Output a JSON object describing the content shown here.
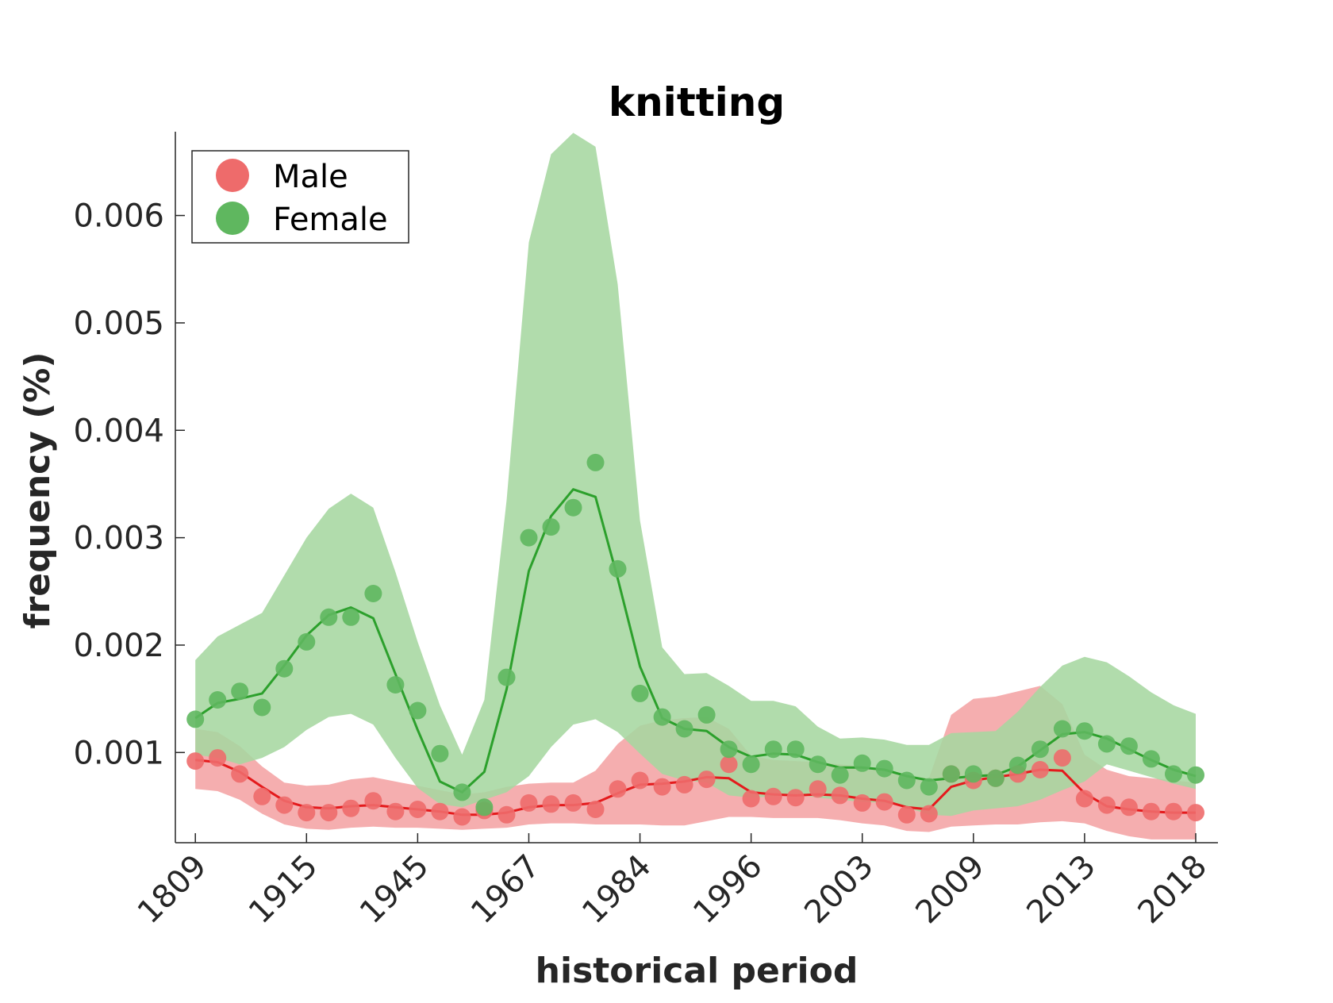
{
  "chart_data": {
    "type": "line",
    "title": "knitting",
    "xlabel": "historical period",
    "ylabel": "frequency (%)",
    "x_tick_labels": [
      "1809",
      "1915",
      "1945",
      "1967",
      "1984",
      "1996",
      "2003",
      "2009",
      "2013",
      "2018"
    ],
    "x_tick_positions": [
      1,
      6,
      11,
      16,
      21,
      26,
      31,
      36,
      41,
      46
    ],
    "xlim": [
      0.1,
      47
    ],
    "ylim": [
      0.00016,
      0.00678
    ],
    "y_ticks": [
      0.001,
      0.002,
      0.003,
      0.004,
      0.005,
      0.006
    ],
    "y_tick_labels": [
      "0.001",
      "0.002",
      "0.003",
      "0.004",
      "0.005",
      "0.006"
    ],
    "grid": false,
    "legend_position": "top-left",
    "x": [
      1,
      2,
      3,
      4,
      5,
      6,
      7,
      8,
      9,
      10,
      11,
      12,
      13,
      14,
      15,
      16,
      17,
      18,
      19,
      20,
      21,
      22,
      23,
      24,
      25,
      26,
      27,
      28,
      29,
      30,
      31,
      32,
      33,
      34,
      35,
      36,
      37,
      38,
      39,
      40,
      41,
      42,
      43,
      44,
      45,
      46
    ],
    "series": [
      {
        "name": "Male",
        "color": "#e41a1c",
        "point_color": "#ee6b6b",
        "band_color": "#f4a3a4",
        "points": [
          0.00092,
          0.00095,
          0.0008,
          0.00059,
          0.00051,
          0.00044,
          0.00044,
          0.00048,
          0.00055,
          0.00045,
          0.00047,
          0.00045,
          0.0004,
          0.00046,
          0.00042,
          0.00053,
          0.00052,
          0.00053,
          0.00047,
          0.00066,
          0.00074,
          0.00068,
          0.0007,
          0.00075,
          0.00089,
          0.00057,
          0.00059,
          0.00058,
          0.00066,
          0.0006,
          0.00053,
          0.00054,
          0.00042,
          0.00043,
          0.0008,
          0.00074,
          0.00076,
          0.0008,
          0.00084,
          0.00095,
          0.00057,
          0.00051,
          0.00049,
          0.00045,
          0.00045,
          0.00044
        ],
        "trend": [
          0.00093,
          0.00091,
          0.00082,
          0.00068,
          0.00055,
          0.00049,
          0.00048,
          0.0005,
          0.00051,
          0.00049,
          0.00047,
          0.00045,
          0.00042,
          0.00042,
          0.00044,
          0.00049,
          0.00051,
          0.00051,
          0.00053,
          0.00062,
          0.0007,
          0.00071,
          0.00073,
          0.00077,
          0.00076,
          0.00063,
          0.00061,
          0.0006,
          0.00061,
          0.0006,
          0.00057,
          0.00055,
          0.00049,
          0.00047,
          0.00068,
          0.00074,
          0.00077,
          0.0008,
          0.00084,
          0.00083,
          0.00062,
          0.0005,
          0.00047,
          0.00045,
          0.00044,
          0.00044
        ],
        "band_upper": [
          0.00122,
          0.00119,
          0.00106,
          0.00087,
          0.00072,
          0.00069,
          0.0007,
          0.00075,
          0.00077,
          0.00073,
          0.00069,
          0.00065,
          0.00061,
          0.00063,
          0.00068,
          0.00071,
          0.00072,
          0.00072,
          0.00083,
          0.00108,
          0.00125,
          0.0013,
          0.00132,
          0.00133,
          0.00122,
          0.00097,
          0.00093,
          0.00092,
          0.00091,
          0.00089,
          0.00087,
          0.00084,
          0.00078,
          0.00076,
          0.00135,
          0.0015,
          0.00152,
          0.00157,
          0.00162,
          0.00145,
          0.00098,
          0.00084,
          0.00078,
          0.00076,
          0.00074,
          0.00072
        ],
        "band_lower": [
          0.00066,
          0.00064,
          0.00056,
          0.00043,
          0.00033,
          0.00029,
          0.00028,
          0.0003,
          0.00031,
          0.0003,
          0.0003,
          0.00029,
          0.00028,
          0.00029,
          0.0003,
          0.00033,
          0.00034,
          0.00034,
          0.00033,
          0.00033,
          0.00033,
          0.00032,
          0.00032,
          0.00036,
          0.0004,
          0.0004,
          0.00039,
          0.00039,
          0.00039,
          0.00037,
          0.00034,
          0.00032,
          0.00027,
          0.00026,
          0.00031,
          0.00032,
          0.00033,
          0.00033,
          0.00035,
          0.00036,
          0.00034,
          0.00027,
          0.00022,
          0.00019,
          0.00019,
          0.00019
        ]
      },
      {
        "name": "Female",
        "color": "#2ca02c",
        "point_color": "#5fb75f",
        "band_color": "#a6d7a0",
        "points": [
          0.00131,
          0.00149,
          0.00157,
          0.00142,
          0.00178,
          0.00203,
          0.00226,
          0.00226,
          0.00248,
          0.00163,
          0.00139,
          0.00099,
          0.00063,
          0.00049,
          0.0017,
          0.003,
          0.0031,
          0.00328,
          0.0037,
          0.00271,
          0.00155,
          0.00133,
          0.00122,
          0.00135,
          0.00103,
          0.00089,
          0.00103,
          0.00103,
          0.00089,
          0.00079,
          0.0009,
          0.00085,
          0.00074,
          0.00068,
          0.0008,
          0.0008,
          0.00076,
          0.00088,
          0.00103,
          0.00122,
          0.0012,
          0.00108,
          0.00106,
          0.00094,
          0.0008,
          0.00079
        ],
        "trend": [
          0.00132,
          0.00146,
          0.0015,
          0.00155,
          0.00181,
          0.00209,
          0.00228,
          0.00235,
          0.00225,
          0.00173,
          0.00121,
          0.00073,
          0.00063,
          0.00082,
          0.00159,
          0.00269,
          0.0032,
          0.00345,
          0.00338,
          0.00262,
          0.0018,
          0.00132,
          0.00122,
          0.0012,
          0.00105,
          0.00096,
          0.00099,
          0.00098,
          0.00091,
          0.00086,
          0.00086,
          0.00084,
          0.00078,
          0.00074,
          0.00076,
          0.00078,
          0.00079,
          0.00087,
          0.00102,
          0.00117,
          0.00119,
          0.00113,
          0.00103,
          0.00093,
          0.00084,
          0.00078
        ],
        "band_upper": [
          0.00186,
          0.00208,
          0.00219,
          0.0023,
          0.00265,
          0.003,
          0.00327,
          0.00341,
          0.00328,
          0.00268,
          0.00203,
          0.00144,
          0.00098,
          0.00149,
          0.00335,
          0.00575,
          0.00657,
          0.00677,
          0.00664,
          0.00536,
          0.00316,
          0.00198,
          0.00173,
          0.00174,
          0.00162,
          0.00148,
          0.00148,
          0.00143,
          0.00124,
          0.00113,
          0.00114,
          0.00112,
          0.00107,
          0.00107,
          0.00118,
          0.00119,
          0.0012,
          0.00138,
          0.00161,
          0.00181,
          0.00189,
          0.00184,
          0.00171,
          0.00156,
          0.00144,
          0.00136
        ],
        "band_lower": [
          0.00098,
          0.00095,
          0.00089,
          0.00095,
          0.00105,
          0.00121,
          0.00133,
          0.00136,
          0.00126,
          0.00095,
          0.00067,
          0.00052,
          0.00049,
          0.00056,
          0.00063,
          0.00078,
          0.00105,
          0.00126,
          0.00131,
          0.00119,
          0.00099,
          0.0008,
          0.00074,
          0.00072,
          0.0006,
          0.00058,
          0.00059,
          0.00061,
          0.00058,
          0.00056,
          0.00054,
          0.00053,
          0.00049,
          0.00042,
          0.00041,
          0.00046,
          0.00048,
          0.0005,
          0.00056,
          0.00065,
          0.00073,
          0.00089,
          0.00083,
          0.00077,
          0.00071,
          0.00066
        ]
      }
    ]
  }
}
